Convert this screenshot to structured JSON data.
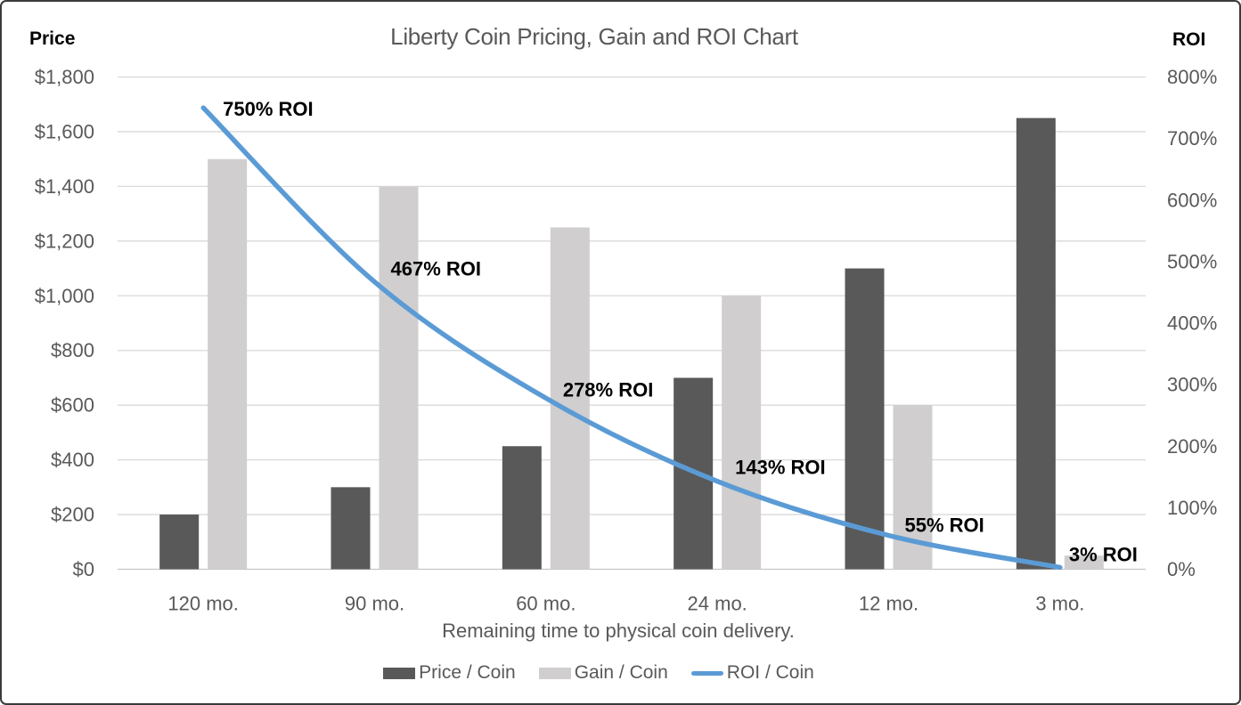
{
  "colors": {
    "price_bar": "#595959",
    "gain_bar": "#D0CECE",
    "roi_line": "#5B9BD5",
    "gridline": "#D9D9D9",
    "baseline": "#C6C6C6",
    "axis_text": "#595959",
    "title_text": "#595959",
    "data_label": "#000000",
    "frame_border": "#3B3B3B"
  },
  "chart_data": {
    "type": "combo",
    "title": "Liberty Coin Pricing, Gain and ROI Chart",
    "xlabel": "Remaining time to physical coin delivery.",
    "categories": [
      "120 mo.",
      "90 mo.",
      "60 mo.",
      "24 mo.",
      "12 mo.",
      "3 mo."
    ],
    "series": [
      {
        "name": "Price / Coin",
        "type": "bar",
        "axis": "left",
        "color": "#595959",
        "values": [
          200,
          300,
          450,
          700,
          1100,
          1650
        ]
      },
      {
        "name": "Gain / Coin",
        "type": "bar",
        "axis": "left",
        "color": "#D0CECE",
        "values": [
          1500,
          1400,
          1250,
          1000,
          600,
          50
        ]
      },
      {
        "name": "ROI / Coin",
        "type": "line",
        "axis": "right",
        "smooth": true,
        "color": "#5B9BD5",
        "values": [
          750,
          467,
          278,
          143,
          55,
          3
        ],
        "unit": "%",
        "point_labels": [
          "750% ROI",
          "467% ROI",
          "278% ROI",
          "143% ROI",
          "55% ROI",
          "3% ROI"
        ]
      }
    ],
    "left_axis": {
      "label": "Price",
      "min": 0,
      "max": 1800,
      "step": 200,
      "ticks": [
        "$1,800",
        "$1,600",
        "$1,400",
        "$1,200",
        "$1,000",
        "$800",
        "$600",
        "$400",
        "$200",
        "$0"
      ]
    },
    "right_axis": {
      "label": "ROI",
      "min": 0,
      "max": 800,
      "step": 100,
      "ticks": [
        "800%",
        "700%",
        "600%",
        "500%",
        "400%",
        "300%",
        "200%",
        "100%",
        "0%"
      ]
    },
    "grid": true,
    "legend_position": "bottom"
  }
}
